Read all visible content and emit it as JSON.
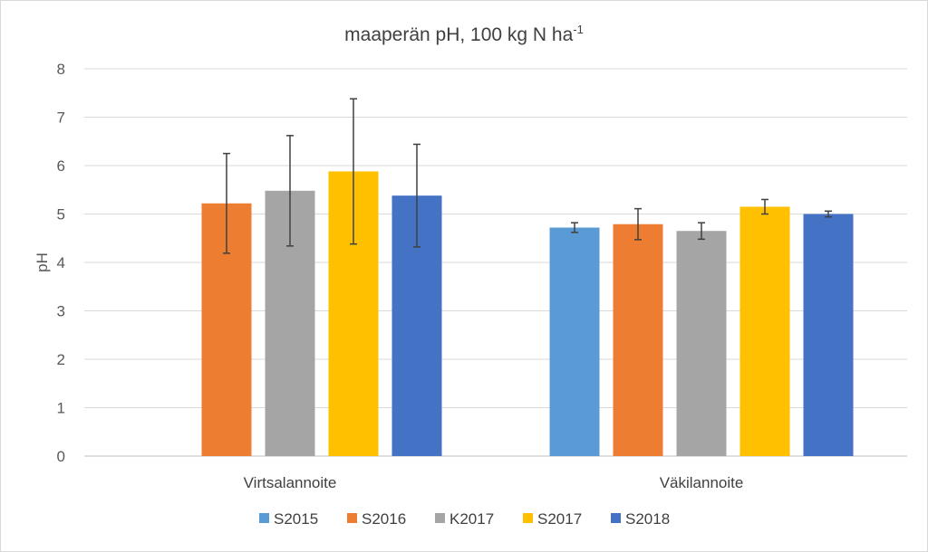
{
  "chart_data": {
    "type": "bar",
    "title": "maaperän pH, 100 kg N ha",
    "title_superscript": "-1",
    "xlabel": "",
    "ylabel": "pH",
    "ylim": [
      0,
      8
    ],
    "yticks": [
      "0",
      "1",
      "2",
      "3",
      "4",
      "5",
      "6",
      "7",
      "8"
    ],
    "grid": true,
    "legend_position": "bottom",
    "categories": [
      "Virtsalannoite",
      "Väkilannoite"
    ],
    "series": [
      {
        "name": "S2015",
        "color": "#5b9bd5",
        "values": [
          null,
          4.72
        ],
        "errors": [
          null,
          0.1
        ]
      },
      {
        "name": "S2016",
        "color": "#ed7d31",
        "values": [
          5.22,
          4.79
        ],
        "errors": [
          1.03,
          0.32
        ]
      },
      {
        "name": "K2017",
        "color": "#a5a5a5",
        "values": [
          5.48,
          4.65
        ],
        "errors": [
          1.14,
          0.17
        ]
      },
      {
        "name": "S2017",
        "color": "#ffc000",
        "values": [
          5.88,
          5.15
        ],
        "errors": [
          1.5,
          0.15
        ]
      },
      {
        "name": "S2018",
        "color": "#4472c4",
        "values": [
          5.38,
          5.0
        ],
        "errors": [
          1.06,
          0.06
        ]
      }
    ]
  }
}
